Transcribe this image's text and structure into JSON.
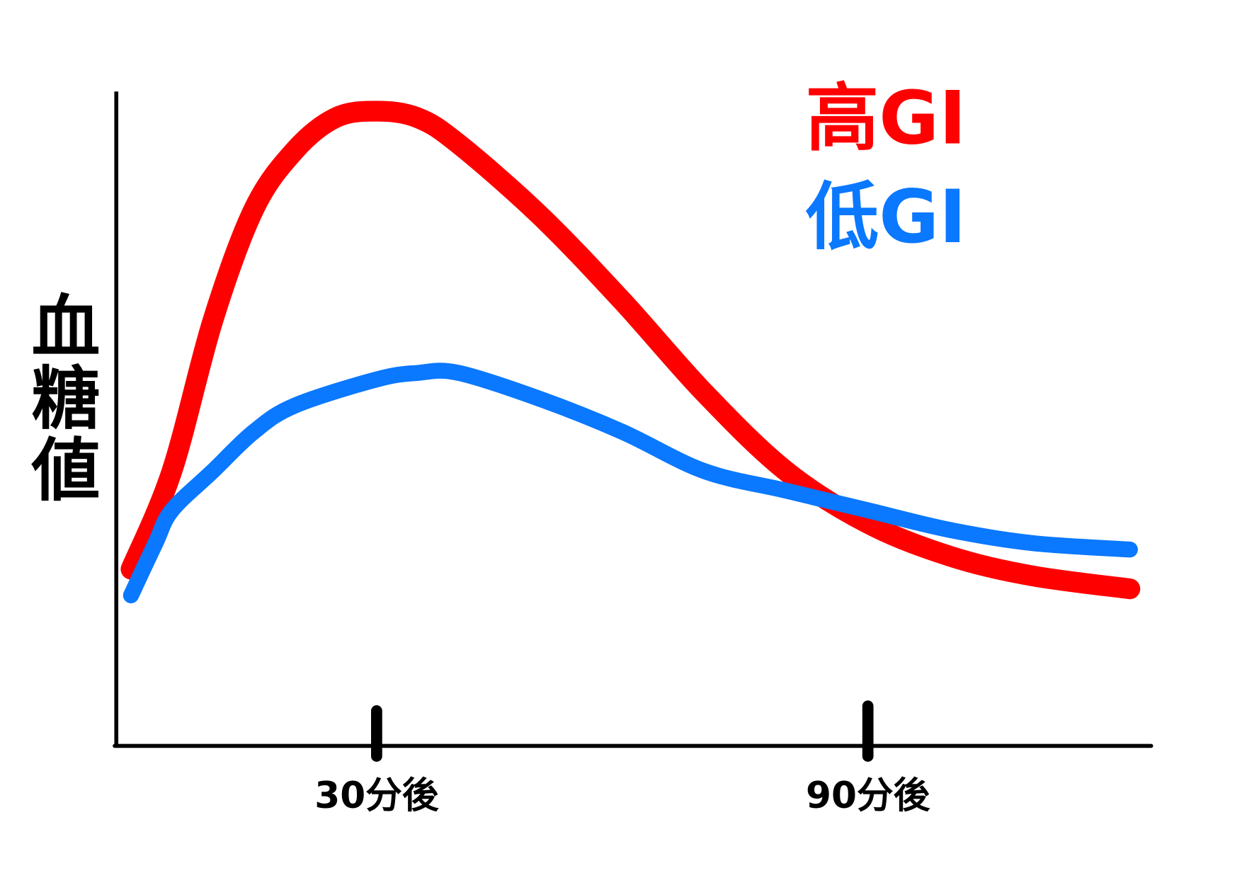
{
  "chart_data": {
    "type": "line",
    "y_label": "血糖値",
    "xlim": [
      -1.6,
      124.5
    ],
    "ylim": [
      0,
      100
    ],
    "xticks": [
      {
        "value": 30,
        "label": "30分後"
      },
      {
        "value": 90,
        "label": "90分後"
      }
    ],
    "series": [
      {
        "name": "高GI",
        "color": "#ff0000",
        "x": [
          0,
          5,
          10,
          15,
          20,
          25,
          30,
          35,
          40,
          50,
          60,
          70,
          80,
          90,
          100,
          110,
          122
        ],
        "values": [
          27,
          42,
          65,
          82,
          91,
          96,
          97,
          96,
          92,
          81,
          68,
          54,
          42,
          34,
          29,
          26,
          24
        ]
      },
      {
        "name": "低GI",
        "color": "#0a78ff",
        "x": [
          0,
          3,
          5,
          10,
          15,
          20,
          30,
          35,
          40,
          50,
          60,
          70,
          80,
          90,
          100,
          110,
          122
        ],
        "values": [
          23,
          31,
          36,
          42,
          48,
          52,
          56,
          57,
          57,
          53,
          48,
          42,
          39,
          36,
          33,
          31,
          30
        ]
      }
    ]
  }
}
